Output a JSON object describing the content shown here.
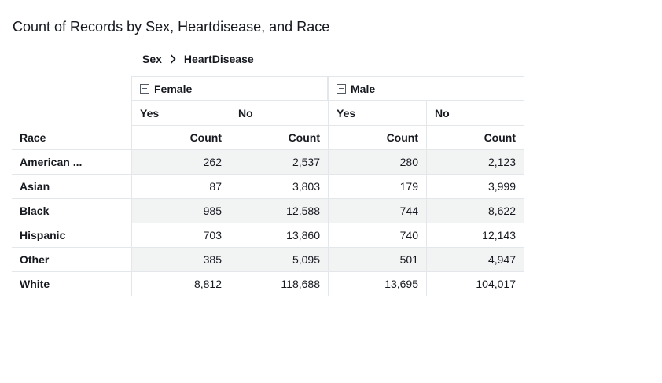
{
  "visual": {
    "title": "Count of Records by Sex, Heartdisease, and Race"
  },
  "breadcrumb": {
    "level1": "Sex",
    "level2": "HeartDisease"
  },
  "pivot": {
    "row_header": "Race",
    "measure_label": "Count",
    "groups": [
      {
        "label": "Female",
        "subcols": [
          "Yes",
          "No"
        ]
      },
      {
        "label": "Male",
        "subcols": [
          "Yes",
          "No"
        ]
      }
    ],
    "rows": [
      {
        "race": "American ...",
        "values": [
          "262",
          "2,537",
          "280",
          "2,123"
        ]
      },
      {
        "race": "Asian",
        "values": [
          "87",
          "3,803",
          "179",
          "3,999"
        ]
      },
      {
        "race": "Black",
        "values": [
          "985",
          "12,588",
          "744",
          "8,622"
        ]
      },
      {
        "race": "Hispanic",
        "values": [
          "703",
          "13,860",
          "740",
          "12,143"
        ]
      },
      {
        "race": "Other",
        "values": [
          "385",
          "5,095",
          "501",
          "4,947"
        ]
      },
      {
        "race": "White",
        "values": [
          "8,812",
          "118,688",
          "13,695",
          "104,017"
        ]
      }
    ]
  },
  "icons": {
    "collapse": "collapse-minus-icon",
    "breadcrumb_separator": "chevron-right-icon"
  },
  "colors": {
    "text": "#16191f",
    "grid_line": "#e4e7ea",
    "stripe": "#f2f3f3"
  }
}
